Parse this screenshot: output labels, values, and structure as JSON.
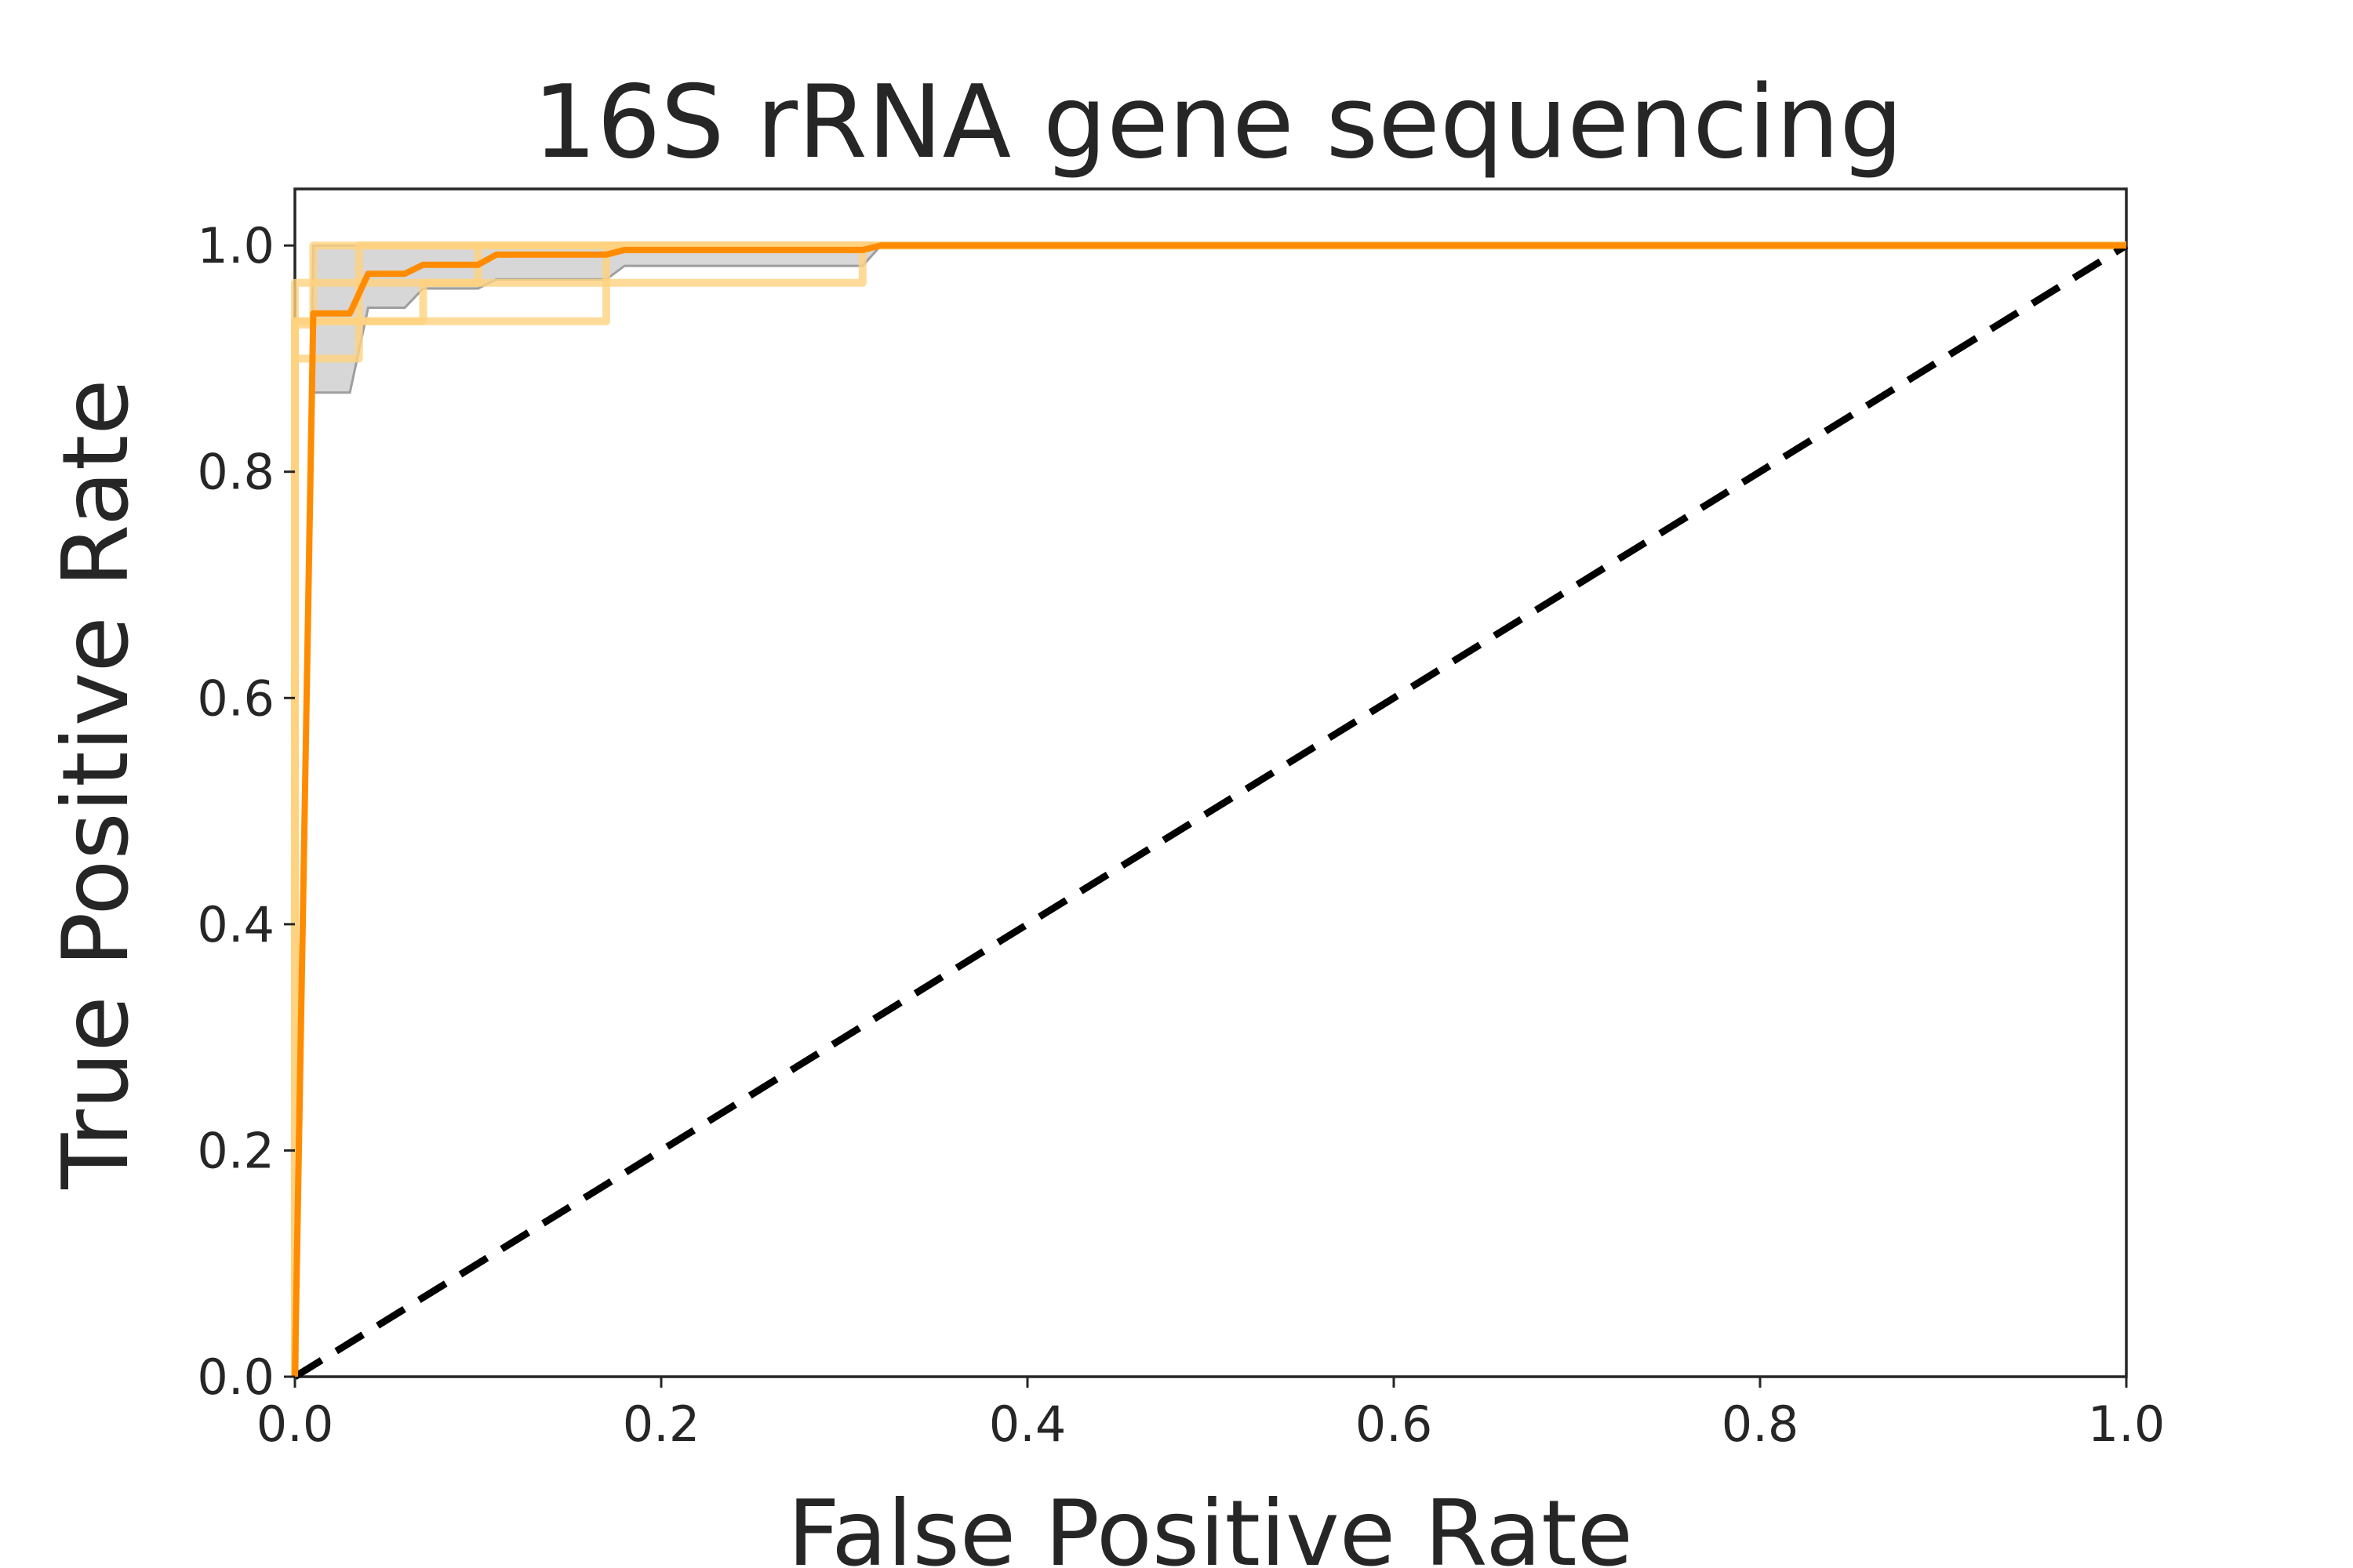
{
  "chart_data": {
    "type": "line",
    "title": "16S rRNA gene sequencing",
    "xlabel": "False Positive Rate",
    "ylabel": "True Positive Rate",
    "xlim": [
      0.0,
      1.0
    ],
    "ylim": [
      0.0,
      1.05
    ],
    "xticks": [
      "0.0",
      "0.2",
      "0.4",
      "0.6",
      "0.8",
      "1.0"
    ],
    "yticks": [
      "0.0",
      "0.2",
      "0.4",
      "0.6",
      "0.8",
      "1.0"
    ],
    "grid": false,
    "legend": "none",
    "colors": {
      "mean_curve": "#ff8c00",
      "fold_curves": "#ffd27f",
      "band": "#bdbdbd",
      "chance": "#000000",
      "axes": "#262626"
    },
    "series": [
      {
        "role": "mean",
        "x": [
          0.0,
          0.01,
          0.03,
          0.04,
          0.06,
          0.07,
          0.1,
          0.11,
          0.17,
          0.18,
          0.31,
          0.32,
          1.0
        ],
        "y": [
          0.0,
          0.94,
          0.94,
          0.975,
          0.975,
          0.983,
          0.983,
          0.992,
          0.992,
          0.996,
          0.996,
          1.0,
          1.0
        ]
      },
      {
        "role": "fold",
        "x": [
          0.0,
          0.0,
          0.01,
          0.01,
          1.0
        ],
        "y": [
          0.0,
          0.93,
          0.93,
          1.0,
          1.0
        ]
      },
      {
        "role": "fold",
        "x": [
          0.0,
          0.0,
          0.07,
          0.07,
          0.1,
          0.1,
          1.0
        ],
        "y": [
          0.0,
          0.933,
          0.933,
          0.967,
          0.967,
          1.0,
          1.0
        ]
      },
      {
        "role": "fold",
        "x": [
          0.0,
          0.0,
          0.17,
          0.17,
          1.0
        ],
        "y": [
          0.0,
          0.933,
          0.933,
          1.0,
          1.0
        ]
      },
      {
        "role": "fold",
        "x": [
          0.0,
          0.0,
          0.035,
          0.035,
          1.0
        ],
        "y": [
          0.0,
          0.9,
          0.9,
          1.0,
          1.0
        ]
      },
      {
        "role": "fold",
        "x": [
          0.0,
          0.0,
          0.31,
          0.31,
          1.0
        ],
        "y": [
          0.0,
          0.967,
          0.967,
          1.0,
          1.0
        ]
      },
      {
        "role": "chance",
        "x": [
          0.0,
          1.0
        ],
        "y": [
          0.0,
          1.0
        ]
      }
    ],
    "band": {
      "x": [
        0.0,
        0.01,
        0.03,
        0.04,
        0.06,
        0.07,
        0.1,
        0.11,
        0.17,
        0.18,
        0.31,
        0.32,
        1.0
      ],
      "lower": [
        0.0,
        0.87,
        0.87,
        0.945,
        0.945,
        0.962,
        0.962,
        0.97,
        0.97,
        0.982,
        0.982,
        1.0,
        1.0
      ],
      "upper": [
        0.0,
        1.0,
        1.0,
        1.0,
        1.0,
        1.0,
        1.0,
        1.0,
        1.0,
        1.0,
        1.0,
        1.0,
        1.0
      ]
    }
  }
}
